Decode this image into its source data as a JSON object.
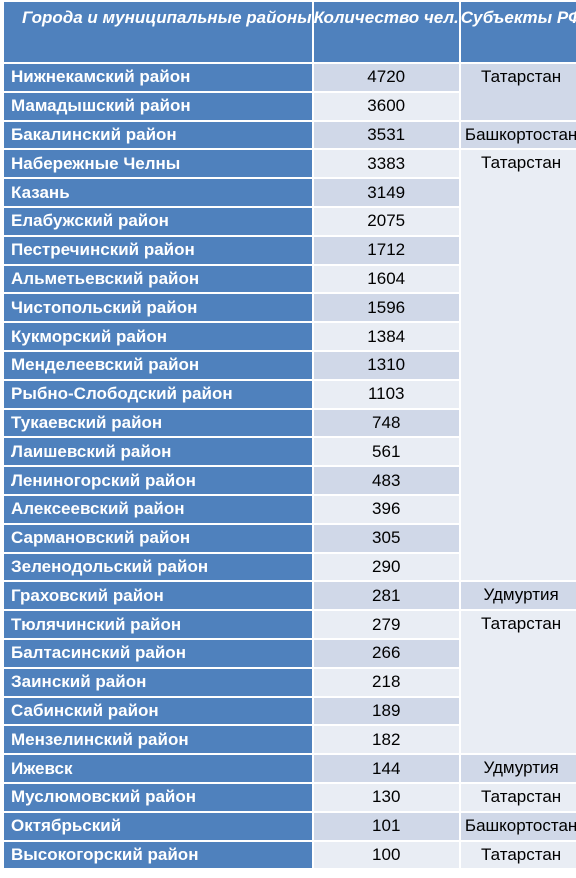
{
  "header": {
    "col1": "Города и муниципальные районы",
    "col2": "Количество чел.",
    "col3": "Субъекты РФ"
  },
  "rows": [
    {
      "name": "Нижнекамский район",
      "count": "4720"
    },
    {
      "name": "Мамадышский район",
      "count": "3600"
    },
    {
      "name": "Бакалинский район",
      "count": "3531"
    },
    {
      "name": "Набережные Челны",
      "count": "3383"
    },
    {
      "name": "Казань",
      "count": "3149"
    },
    {
      "name": "Елабужский район",
      "count": "2075"
    },
    {
      "name": "Пестречинский район",
      "count": "1712"
    },
    {
      "name": "Альметьевский район",
      "count": "1604"
    },
    {
      "name": "Чистопольский район",
      "count": "1596"
    },
    {
      "name": "Кукморский район",
      "count": "1384"
    },
    {
      "name": "Менделеевский район",
      "count": "1310"
    },
    {
      "name": "Рыбно-Слободский район",
      "count": "1103"
    },
    {
      "name": "Тукаевский район",
      "count": "748"
    },
    {
      "name": "Лаишевский район",
      "count": "561"
    },
    {
      "name": "Лениногорский район",
      "count": "483"
    },
    {
      "name": "Алексеевский район",
      "count": "396"
    },
    {
      "name": "Сармановский район",
      "count": "305"
    },
    {
      "name": "Зеленодольский район",
      "count": "290"
    },
    {
      "name": "Граховский район",
      "count": "281"
    },
    {
      "name": "Тюлячинский район",
      "count": "279"
    },
    {
      "name": "Балтасинский район",
      "count": "266"
    },
    {
      "name": "Заинский район",
      "count": "218"
    },
    {
      "name": "Сабинский район",
      "count": "189"
    },
    {
      "name": "Мензелинский район",
      "count": "182"
    },
    {
      "name": "Ижевск",
      "count": "144"
    },
    {
      "name": "Муслюмовский район",
      "count": "130"
    },
    {
      "name": "Октябрьский",
      "count": "101"
    },
    {
      "name": "Высокогорский район",
      "count": "100"
    }
  ],
  "regions": [
    {
      "label": "Татарстан",
      "start": 0,
      "span": 2
    },
    {
      "label": "Башкортостан",
      "start": 2,
      "span": 1
    },
    {
      "label": "Татарстан",
      "start": 3,
      "span": 15
    },
    {
      "label": "Удмуртия",
      "start": 18,
      "span": 1
    },
    {
      "label": "Татарстан",
      "start": 19,
      "span": 5
    },
    {
      "label": "Удмуртия",
      "start": 24,
      "span": 1
    },
    {
      "label": "Татарстан",
      "start": 25,
      "span": 1
    },
    {
      "label": "Башкортостан",
      "start": 26,
      "span": 1
    },
    {
      "label": "Татарстан",
      "start": 27,
      "span": 1
    }
  ]
}
